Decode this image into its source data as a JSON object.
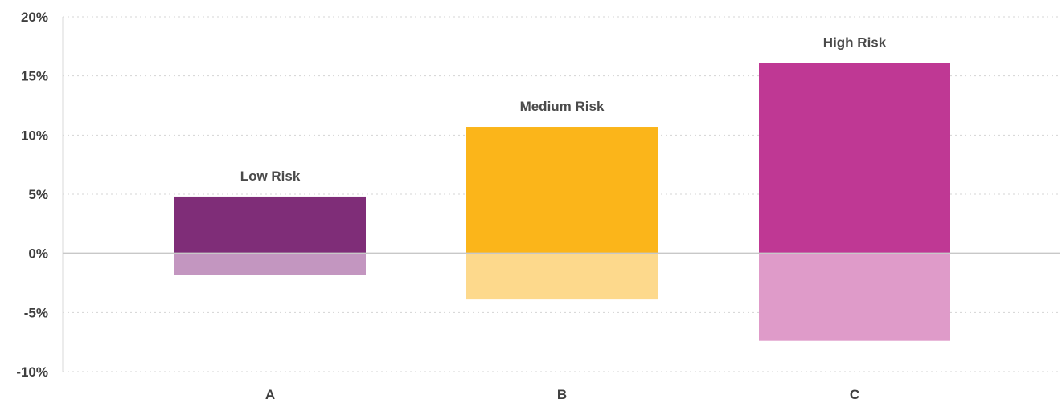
{
  "chart_data": {
    "type": "bar",
    "categories": [
      "A",
      "B",
      "C"
    ],
    "series": [
      {
        "values": [
          4.8,
          10.7,
          16.1
        ],
        "colors": [
          "#7f2d78",
          "#fbb51a",
          "#bf3894"
        ]
      },
      {
        "values": [
          -1.8,
          -3.9,
          -7.4
        ],
        "colors": [
          "#c396c0",
          "#fdd98c",
          "#df9bc9"
        ]
      }
    ],
    "bar_labels": [
      "Low Risk",
      "Medium Risk",
      "High Risk"
    ],
    "y_ticks": [
      "20%",
      "15%",
      "10%",
      "5%",
      "0%",
      "-5%",
      "-10%"
    ],
    "y_tick_values": [
      20,
      15,
      10,
      5,
      0,
      -5,
      -10
    ],
    "ylim": [
      -10,
      20
    ],
    "grid": true,
    "stacked": true
  }
}
